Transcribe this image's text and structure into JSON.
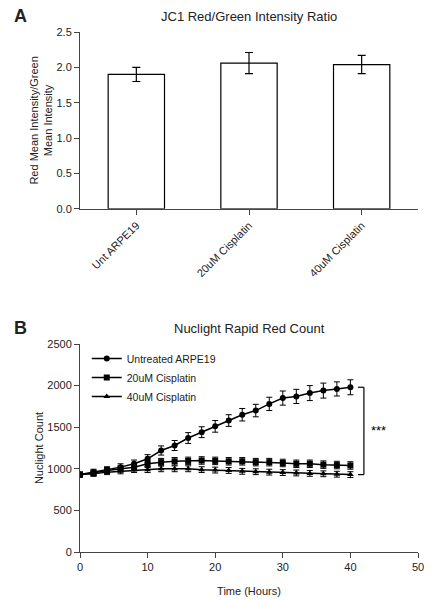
{
  "chart_data": [
    {
      "type": "bar",
      "title": "JC1 Red/Green Intensity Ratio",
      "annotations": [
        {
          "text": "A"
        }
      ],
      "categories": [
        "Unt ARPE19",
        "20uM Cisplatin",
        "40uM Cisplatin"
      ],
      "values": [
        1.9,
        2.06,
        2.04
      ],
      "errors": [
        0.1,
        0.15,
        0.13
      ],
      "color": "white",
      "ylabel": "Red Mean Intensity/Green\nMean Intensity",
      "ylim": [
        0.0,
        2.5
      ],
      "yticks": [
        {
          "value": 0,
          "label": "0.0"
        },
        0.5,
        {
          "value": 1,
          "label": "1.0"
        },
        1.5,
        {
          "value": 2,
          "label": "2.0"
        },
        2.5
      ],
      "grid": false
    },
    {
      "type": "line",
      "title": "Nuclight Rapid Red Count",
      "xlabel": "Time (Hours)",
      "ylabel": "Nuclight Count",
      "x": [
        0,
        2,
        4,
        6,
        8,
        10,
        12,
        14,
        16,
        18,
        20,
        22,
        24,
        26,
        28,
        30,
        32,
        34,
        36,
        38,
        40
      ],
      "series": [
        {
          "name": "Untreated ARPE19",
          "color": "black",
          "marker": "circle",
          "values": [
            930,
            960,
            990,
            1020,
            1060,
            1120,
            1220,
            1280,
            1370,
            1440,
            1510,
            1580,
            1650,
            1700,
            1780,
            1850,
            1870,
            1910,
            1940,
            1960,
            1980
          ],
          "errors": [
            30,
            35,
            35,
            40,
            45,
            50,
            55,
            60,
            65,
            65,
            70,
            70,
            75,
            75,
            80,
            85,
            85,
            90,
            90,
            85,
            90
          ]
        },
        {
          "name": "20uM Cisplatin",
          "color": "black",
          "marker": "square",
          "values": [
            930,
            950,
            980,
            1000,
            1020,
            1060,
            1080,
            1090,
            1095,
            1100,
            1095,
            1090,
            1090,
            1080,
            1080,
            1070,
            1060,
            1060,
            1050,
            1045,
            1040
          ],
          "errors": [
            30,
            35,
            35,
            35,
            40,
            45,
            45,
            45,
            45,
            45,
            45,
            45,
            45,
            45,
            45,
            45,
            45,
            45,
            45,
            45,
            45
          ]
        },
        {
          "name": "40uM Cisplatin",
          "color": "black",
          "marker": "triangle",
          "values": [
            930,
            940,
            960,
            970,
            985,
            990,
            1000,
            1000,
            1000,
            990,
            985,
            980,
            970,
            965,
            960,
            955,
            950,
            945,
            940,
            935,
            930
          ],
          "errors": [
            25,
            30,
            30,
            30,
            30,
            35,
            35,
            35,
            35,
            35,
            35,
            35,
            35,
            35,
            35,
            35,
            35,
            35,
            35,
            35,
            35
          ]
        }
      ],
      "xlim": [
        0,
        50
      ],
      "xticks": [
        0,
        10,
        20,
        30,
        40,
        50
      ],
      "ylim": [
        0,
        2500
      ],
      "yticks": [
        0,
        500,
        1000,
        1500,
        2000,
        2500
      ],
      "grid": false,
      "legend": "upper left",
      "annotations": [
        {
          "text": "B"
        },
        {
          "text": "***",
          "x": 42,
          "y": [
            930,
            1980
          ]
        }
      ]
    }
  ]
}
